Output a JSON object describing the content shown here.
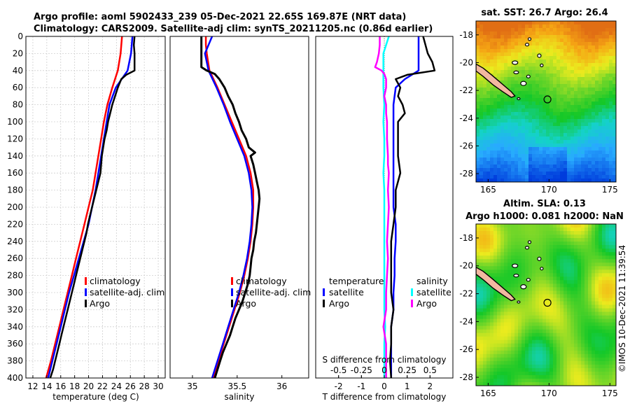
{
  "header": {
    "title_line1": "Argo profile: aoml 5902433_239 05-Dec-2021 22.65S 169.87E (NRT data)",
    "title_line2": "Climatology: CARS2009. Satellite-adj clim: synTS_20211205.nc (0.86d earlier)"
  },
  "colors": {
    "climatology": "#ff0000",
    "satellite": "#0000ff",
    "argo": "#000000",
    "sal_satellite": "#00ffff",
    "sal_argo": "#ff00ff"
  },
  "chart_data": [
    {
      "type": "line",
      "id": "temperature-profile",
      "xlabel": "temperature (deg C)",
      "ylabel": "",
      "xlim": [
        11,
        31
      ],
      "ylim": [
        400,
        0
      ],
      "xticks": [
        12,
        14,
        16,
        18,
        20,
        22,
        24,
        26,
        28,
        30
      ],
      "yticks": [
        0,
        20,
        40,
        60,
        80,
        100,
        120,
        140,
        160,
        180,
        200,
        220,
        240,
        260,
        280,
        300,
        320,
        340,
        360,
        380,
        400
      ],
      "grid": true,
      "legend": {
        "position": "lower-right",
        "entries": [
          "climatology",
          "satellite-adj. clim",
          "Argo"
        ]
      },
      "series": [
        {
          "name": "climatology",
          "color": "#ff0000",
          "depth": [
            0,
            20,
            40,
            60,
            80,
            100,
            120,
            140,
            160,
            180,
            200,
            220,
            240,
            260,
            280,
            300,
            320,
            340,
            360,
            380,
            400
          ],
          "values": [
            24.8,
            24.6,
            24.2,
            23.4,
            22.7,
            22.2,
            21.8,
            21.4,
            21.0,
            20.6,
            20.0,
            19.4,
            18.8,
            18.2,
            17.6,
            17.0,
            16.4,
            15.8,
            15.2,
            14.6,
            13.9
          ]
        },
        {
          "name": "satellite-adj. clim",
          "color": "#0000ff",
          "depth": [
            0,
            20,
            40,
            60,
            80,
            100,
            120,
            140,
            160,
            180,
            200,
            220,
            240,
            260,
            280,
            300,
            320,
            340,
            360,
            380,
            400
          ],
          "values": [
            26.3,
            26.1,
            25.6,
            23.9,
            23.0,
            22.6,
            22.2,
            21.8,
            21.4,
            21.0,
            20.5,
            20.0,
            19.3,
            18.6,
            17.9,
            17.2,
            16.6,
            16.0,
            15.4,
            14.8,
            14.2
          ]
        },
        {
          "name": "Argo",
          "color": "#000000",
          "depth": [
            0,
            10,
            20,
            30,
            40,
            45,
            50,
            60,
            70,
            80,
            90,
            100,
            110,
            120,
            130,
            140,
            150,
            160,
            170,
            180,
            190,
            200,
            210,
            220,
            230,
            240,
            250,
            260,
            270,
            280,
            290,
            300,
            310,
            320,
            330,
            340,
            350,
            360,
            370,
            380,
            390,
            400
          ],
          "values": [
            26.6,
            26.5,
            26.6,
            26.6,
            26.6,
            25.4,
            24.7,
            24.2,
            23.8,
            23.4,
            23.1,
            22.8,
            22.6,
            22.3,
            22.1,
            21.9,
            21.8,
            21.7,
            21.4,
            21.1,
            20.8,
            20.5,
            20.2,
            19.9,
            19.7,
            19.4,
            19.1,
            18.8,
            18.5,
            18.2,
            17.9,
            17.6,
            17.3,
            17.0,
            16.7,
            16.4,
            16.1,
            15.8,
            15.5,
            15.2,
            14.9,
            14.5
          ]
        }
      ]
    },
    {
      "type": "line",
      "id": "salinity-profile",
      "xlabel": "salinity",
      "xlim": [
        34.75,
        36.3
      ],
      "ylim": [
        400,
        0
      ],
      "xticks": [
        35,
        35.5,
        36
      ],
      "grid": false,
      "legend": {
        "position": "lower-right",
        "entries": [
          "climatology",
          "satellite-adj. clim",
          "Argo"
        ]
      },
      "series": [
        {
          "name": "climatology",
          "color": "#ff0000",
          "depth": [
            0,
            10,
            20,
            40,
            60,
            80,
            100,
            120,
            140,
            160,
            180,
            200,
            220,
            240,
            260,
            280,
            300,
            320,
            340,
            360,
            380,
            400
          ],
          "values": [
            35.15,
            35.15,
            35.16,
            35.19,
            35.28,
            35.36,
            35.44,
            35.52,
            35.6,
            35.65,
            35.68,
            35.68,
            35.67,
            35.65,
            35.62,
            35.58,
            35.53,
            35.47,
            35.41,
            35.35,
            35.29,
            35.23
          ]
        },
        {
          "name": "satellite-adj. clim",
          "color": "#0000ff",
          "depth": [
            0,
            10,
            20,
            40,
            60,
            80,
            100,
            120,
            140,
            160,
            180,
            200,
            220,
            240,
            260,
            280,
            300,
            320,
            340,
            360,
            380,
            400
          ],
          "values": [
            35.22,
            35.18,
            35.14,
            35.18,
            35.27,
            35.35,
            35.42,
            35.5,
            35.58,
            35.63,
            35.66,
            35.67,
            35.66,
            35.64,
            35.61,
            35.57,
            35.52,
            35.46,
            35.4,
            35.34,
            35.28,
            35.22
          ]
        },
        {
          "name": "Argo",
          "color": "#000000",
          "depth": [
            0,
            10,
            20,
            30,
            36,
            40,
            44,
            50,
            60,
            70,
            80,
            90,
            100,
            110,
            120,
            130,
            136,
            140,
            150,
            160,
            170,
            180,
            190,
            200,
            210,
            220,
            230,
            240,
            250,
            260,
            270,
            280,
            290,
            300,
            310,
            320,
            330,
            340,
            350,
            360,
            370,
            380,
            390,
            400
          ],
          "values": [
            35.1,
            35.1,
            35.1,
            35.1,
            35.1,
            35.16,
            35.25,
            35.3,
            35.36,
            35.4,
            35.45,
            35.48,
            35.52,
            35.55,
            35.6,
            35.63,
            35.7,
            35.65,
            35.68,
            35.7,
            35.72,
            35.74,
            35.75,
            35.74,
            35.73,
            35.72,
            35.71,
            35.69,
            35.68,
            35.66,
            35.65,
            35.64,
            35.62,
            35.59,
            35.56,
            35.52,
            35.48,
            35.45,
            35.42,
            35.38,
            35.34,
            35.31,
            35.28,
            35.25
          ]
        }
      ]
    },
    {
      "type": "line",
      "id": "difference-profile",
      "xlabel": "T difference from climatology",
      "x2label": "S difference from climatology",
      "xlim": [
        -3,
        3
      ],
      "x2lim": [
        -0.75,
        0.75
      ],
      "ylim": [
        400,
        0
      ],
      "xticks": [
        -2,
        -1,
        0,
        1,
        2
      ],
      "x2ticks": [
        "-0.5",
        "-0.25",
        "0",
        "0.25",
        "0.5"
      ],
      "grid": false,
      "legend_temperature": {
        "title": "temperature",
        "entries": [
          "satellite",
          "Argo"
        ]
      },
      "legend_salinity": {
        "title": "salinity",
        "entries": [
          "satellite",
          "Argo"
        ]
      },
      "series": [
        {
          "name": "temperature satellite",
          "color": "#0000ff",
          "depth": [
            0,
            20,
            40,
            50,
            60,
            80,
            100,
            120,
            140,
            160,
            180,
            200,
            220,
            240,
            260,
            280,
            300,
            320,
            340,
            360,
            380,
            400
          ],
          "values": [
            1.5,
            1.5,
            1.5,
            0.9,
            0.5,
            0.4,
            0.4,
            0.4,
            0.4,
            0.4,
            0.4,
            0.4,
            0.5,
            0.5,
            0.45,
            0.45,
            0.4,
            0.4,
            0.3,
            0.3,
            0.3,
            0.3
          ]
        },
        {
          "name": "temperature Argo",
          "color": "#000000",
          "depth": [
            0,
            10,
            20,
            30,
            40,
            45,
            50,
            60,
            70,
            80,
            90,
            100,
            120,
            140,
            160,
            180,
            200,
            220,
            240,
            260,
            280,
            300,
            320,
            340,
            360,
            380,
            400
          ],
          "values": [
            1.7,
            1.8,
            1.9,
            2.1,
            2.2,
            1.0,
            0.5,
            0.7,
            0.6,
            0.8,
            0.9,
            0.6,
            0.6,
            0.6,
            0.7,
            0.5,
            0.5,
            0.4,
            0.3,
            0.3,
            0.3,
            0.3,
            0.4,
            0.3,
            0.3,
            0.25,
            0.3
          ]
        },
        {
          "name": "salinity satellite",
          "color": "#00ffff",
          "depth": [
            0,
            20,
            40,
            60,
            80,
            100,
            120,
            140,
            160,
            180,
            200,
            220,
            240,
            260,
            280,
            300,
            320,
            340,
            360,
            380,
            400
          ],
          "values": [
            0.05,
            -0.01,
            -0.01,
            -0.01,
            0.0,
            -0.01,
            0.0,
            0.0,
            -0.01,
            0.0,
            0.0,
            0.0,
            0.0,
            0.0,
            0.0,
            0.0,
            0.0,
            0.01,
            0.0,
            0.0,
            0.0
          ]
        },
        {
          "name": "salinity Argo",
          "color": "#ff00ff",
          "depth": [
            0,
            10,
            20,
            30,
            36,
            40,
            44,
            50,
            60,
            70,
            80,
            90,
            100,
            120,
            140,
            150,
            160,
            180,
            200,
            220,
            240,
            260,
            280,
            300,
            320,
            340,
            360,
            380,
            400
          ],
          "values": [
            -0.05,
            -0.05,
            -0.06,
            -0.08,
            -0.1,
            -0.03,
            0.0,
            0.02,
            0.02,
            0.0,
            0.02,
            0.02,
            0.03,
            0.03,
            0.04,
            0.04,
            0.05,
            0.04,
            0.05,
            0.04,
            0.03,
            0.04,
            0.03,
            0.02,
            0.02,
            -0.01,
            0.02,
            0.02,
            0.02
          ]
        }
      ]
    }
  ],
  "maps": {
    "sst_title": "sat. SST: 26.7 Argo: 26.4",
    "sla_title1": "Altim. SLA: 0.13",
    "sla_title2": "Argo h1000: 0.081 h2000: NaN",
    "lon_ticks": [
      "165",
      "170",
      "175"
    ],
    "lat_ticks": [
      "-18",
      "-20",
      "-22",
      "-24",
      "-26",
      "-28"
    ],
    "lon_range": [
      164.0,
      175.5
    ],
    "lat_range": [
      -17.0,
      -28.6
    ],
    "float_position": {
      "lon": 169.87,
      "lat": -22.65
    }
  },
  "footer": {
    "credit": "©IMOS 10-Dec-2021 11:39:54"
  }
}
